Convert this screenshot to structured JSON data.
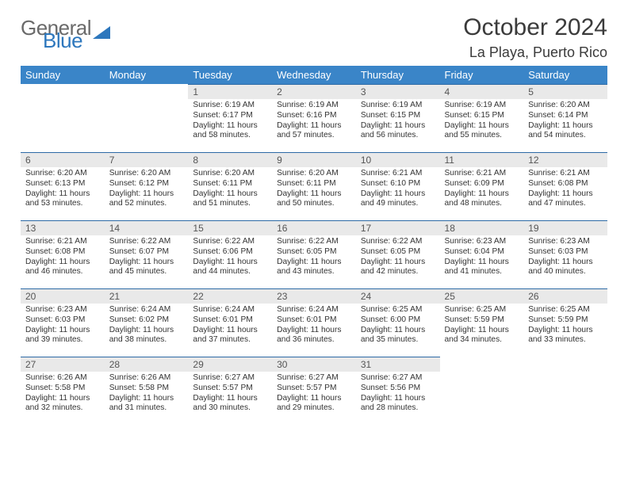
{
  "brand": {
    "line1": "General",
    "line2": "Blue"
  },
  "title": "October 2024",
  "location": "La Playa, Puerto Rico",
  "header_color": "#3a85c8",
  "daynum_bg": "#e9e9e9",
  "rule_color": "#2d6aa5",
  "weekdays": [
    "Sunday",
    "Monday",
    "Tuesday",
    "Wednesday",
    "Thursday",
    "Friday",
    "Saturday"
  ],
  "first_weekday_index": 2,
  "days": [
    {
      "n": 1,
      "sr": "6:19 AM",
      "ss": "6:17 PM",
      "dl": "11 hours and 58 minutes."
    },
    {
      "n": 2,
      "sr": "6:19 AM",
      "ss": "6:16 PM",
      "dl": "11 hours and 57 minutes."
    },
    {
      "n": 3,
      "sr": "6:19 AM",
      "ss": "6:15 PM",
      "dl": "11 hours and 56 minutes."
    },
    {
      "n": 4,
      "sr": "6:19 AM",
      "ss": "6:15 PM",
      "dl": "11 hours and 55 minutes."
    },
    {
      "n": 5,
      "sr": "6:20 AM",
      "ss": "6:14 PM",
      "dl": "11 hours and 54 minutes."
    },
    {
      "n": 6,
      "sr": "6:20 AM",
      "ss": "6:13 PM",
      "dl": "11 hours and 53 minutes."
    },
    {
      "n": 7,
      "sr": "6:20 AM",
      "ss": "6:12 PM",
      "dl": "11 hours and 52 minutes."
    },
    {
      "n": 8,
      "sr": "6:20 AM",
      "ss": "6:11 PM",
      "dl": "11 hours and 51 minutes."
    },
    {
      "n": 9,
      "sr": "6:20 AM",
      "ss": "6:11 PM",
      "dl": "11 hours and 50 minutes."
    },
    {
      "n": 10,
      "sr": "6:21 AM",
      "ss": "6:10 PM",
      "dl": "11 hours and 49 minutes."
    },
    {
      "n": 11,
      "sr": "6:21 AM",
      "ss": "6:09 PM",
      "dl": "11 hours and 48 minutes."
    },
    {
      "n": 12,
      "sr": "6:21 AM",
      "ss": "6:08 PM",
      "dl": "11 hours and 47 minutes."
    },
    {
      "n": 13,
      "sr": "6:21 AM",
      "ss": "6:08 PM",
      "dl": "11 hours and 46 minutes."
    },
    {
      "n": 14,
      "sr": "6:22 AM",
      "ss": "6:07 PM",
      "dl": "11 hours and 45 minutes."
    },
    {
      "n": 15,
      "sr": "6:22 AM",
      "ss": "6:06 PM",
      "dl": "11 hours and 44 minutes."
    },
    {
      "n": 16,
      "sr": "6:22 AM",
      "ss": "6:05 PM",
      "dl": "11 hours and 43 minutes."
    },
    {
      "n": 17,
      "sr": "6:22 AM",
      "ss": "6:05 PM",
      "dl": "11 hours and 42 minutes."
    },
    {
      "n": 18,
      "sr": "6:23 AM",
      "ss": "6:04 PM",
      "dl": "11 hours and 41 minutes."
    },
    {
      "n": 19,
      "sr": "6:23 AM",
      "ss": "6:03 PM",
      "dl": "11 hours and 40 minutes."
    },
    {
      "n": 20,
      "sr": "6:23 AM",
      "ss": "6:03 PM",
      "dl": "11 hours and 39 minutes."
    },
    {
      "n": 21,
      "sr": "6:24 AM",
      "ss": "6:02 PM",
      "dl": "11 hours and 38 minutes."
    },
    {
      "n": 22,
      "sr": "6:24 AM",
      "ss": "6:01 PM",
      "dl": "11 hours and 37 minutes."
    },
    {
      "n": 23,
      "sr": "6:24 AM",
      "ss": "6:01 PM",
      "dl": "11 hours and 36 minutes."
    },
    {
      "n": 24,
      "sr": "6:25 AM",
      "ss": "6:00 PM",
      "dl": "11 hours and 35 minutes."
    },
    {
      "n": 25,
      "sr": "6:25 AM",
      "ss": "5:59 PM",
      "dl": "11 hours and 34 minutes."
    },
    {
      "n": 26,
      "sr": "6:25 AM",
      "ss": "5:59 PM",
      "dl": "11 hours and 33 minutes."
    },
    {
      "n": 27,
      "sr": "6:26 AM",
      "ss": "5:58 PM",
      "dl": "11 hours and 32 minutes."
    },
    {
      "n": 28,
      "sr": "6:26 AM",
      "ss": "5:58 PM",
      "dl": "11 hours and 31 minutes."
    },
    {
      "n": 29,
      "sr": "6:27 AM",
      "ss": "5:57 PM",
      "dl": "11 hours and 30 minutes."
    },
    {
      "n": 30,
      "sr": "6:27 AM",
      "ss": "5:57 PM",
      "dl": "11 hours and 29 minutes."
    },
    {
      "n": 31,
      "sr": "6:27 AM",
      "ss": "5:56 PM",
      "dl": "11 hours and 28 minutes."
    }
  ],
  "labels": {
    "sunrise": "Sunrise:",
    "sunset": "Sunset:",
    "daylight": "Daylight:"
  }
}
